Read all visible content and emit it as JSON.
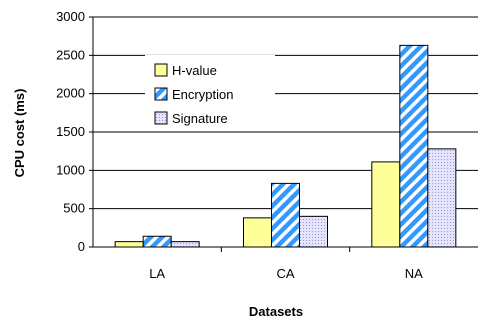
{
  "chart_data": {
    "type": "bar",
    "title": "",
    "xlabel": "Datasets",
    "ylabel": "CPU cost (ms)",
    "categories": [
      "LA",
      "CA",
      "NA"
    ],
    "ylim": [
      0,
      3000
    ],
    "yticks": [
      "0",
      "500",
      "1000",
      "1500",
      "2000",
      "2500",
      "3000"
    ],
    "grid": "horizontal",
    "legend_position": "top-left inside",
    "series": [
      {
        "name": "H-value",
        "values": [
          70,
          380,
          1110
        ],
        "color": "#ffff99",
        "pattern": "solid"
      },
      {
        "name": "Encryption",
        "values": [
          140,
          830,
          2630
        ],
        "color": "#3399ff",
        "pattern": "diagonal-stripes"
      },
      {
        "name": "Signature",
        "values": [
          70,
          400,
          1280
        ],
        "color": "#ccccff",
        "pattern": "dotted"
      }
    ]
  }
}
